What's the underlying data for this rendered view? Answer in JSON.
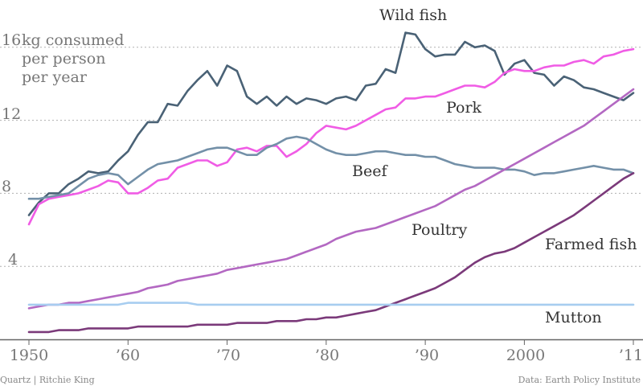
{
  "chart_data": {
    "type": "line",
    "ylabel": [
      "kg consumed",
      "per person",
      "per year"
    ],
    "ylim": [
      0,
      17.5
    ],
    "xlim": [
      1950,
      2011
    ],
    "x_ticks": [
      {
        "value": 1950,
        "label": "1950"
      },
      {
        "value": 1960,
        "label": "’60"
      },
      {
        "value": 1970,
        "label": "’70"
      },
      {
        "value": 1980,
        "label": "’80"
      },
      {
        "value": 1990,
        "label": "’90"
      },
      {
        "value": 2000,
        "label": "2000"
      },
      {
        "value": 2011,
        "label": "’11"
      }
    ],
    "y_ticks": [
      {
        "value": 4,
        "label": "4"
      },
      {
        "value": 8,
        "label": "8"
      },
      {
        "value": 12,
        "label": "12"
      },
      {
        "value": 16,
        "label": "16"
      }
    ],
    "x_start": 1950,
    "series": [
      {
        "name": "Wild fish",
        "color": "#4a6276",
        "values": [
          6.8,
          7.5,
          8.0,
          8.0,
          8.5,
          8.8,
          9.2,
          9.1,
          9.2,
          9.8,
          10.3,
          11.2,
          11.9,
          11.9,
          12.9,
          12.8,
          13.6,
          14.2,
          14.7,
          13.9,
          15.0,
          14.7,
          13.3,
          12.9,
          13.3,
          12.8,
          13.3,
          12.9,
          13.2,
          13.1,
          12.9,
          13.2,
          13.3,
          13.1,
          13.9,
          14.0,
          14.8,
          14.6,
          16.8,
          16.7,
          15.9,
          15.5,
          15.6,
          15.6,
          16.3,
          16.0,
          16.1,
          15.8,
          14.5,
          15.1,
          15.3,
          14.6,
          14.5,
          13.9,
          14.4,
          14.2,
          13.8,
          13.7,
          13.5,
          13.3,
          13.1,
          13.5
        ]
      },
      {
        "name": "Pork",
        "color": "#f05ce5",
        "values": [
          6.3,
          7.4,
          7.7,
          7.8,
          7.9,
          8.0,
          8.2,
          8.4,
          8.7,
          8.6,
          8.0,
          8.0,
          8.3,
          8.7,
          8.8,
          9.4,
          9.6,
          9.8,
          9.8,
          9.5,
          9.7,
          10.4,
          10.5,
          10.3,
          10.6,
          10.6,
          10.0,
          10.3,
          10.7,
          11.3,
          11.7,
          11.6,
          11.5,
          11.7,
          12.0,
          12.3,
          12.6,
          12.7,
          13.2,
          13.2,
          13.3,
          13.3,
          13.5,
          13.7,
          13.9,
          13.9,
          13.8,
          14.1,
          14.6,
          14.8,
          14.7,
          14.7,
          14.9,
          15.0,
          15.0,
          15.2,
          15.3,
          15.1,
          15.5,
          15.6,
          15.8,
          15.9
        ]
      },
      {
        "name": "Beef",
        "color": "#7390a8",
        "values": [
          7.7,
          7.7,
          7.8,
          7.9,
          8.0,
          8.4,
          8.8,
          9.0,
          9.1,
          9.0,
          8.5,
          8.9,
          9.3,
          9.6,
          9.7,
          9.8,
          10.0,
          10.2,
          10.4,
          10.5,
          10.5,
          10.3,
          10.1,
          10.1,
          10.5,
          10.7,
          11.0,
          11.1,
          11.0,
          10.7,
          10.4,
          10.2,
          10.1,
          10.1,
          10.2,
          10.3,
          10.3,
          10.2,
          10.1,
          10.1,
          10.0,
          10.0,
          9.8,
          9.6,
          9.5,
          9.4,
          9.4,
          9.4,
          9.3,
          9.3,
          9.2,
          9.0,
          9.1,
          9.1,
          9.2,
          9.3,
          9.4,
          9.5,
          9.4,
          9.3,
          9.3,
          9.1
        ]
      },
      {
        "name": "Poultry",
        "color": "#b368c2",
        "values": [
          1.7,
          1.8,
          1.9,
          1.9,
          2.0,
          2.0,
          2.1,
          2.2,
          2.3,
          2.4,
          2.5,
          2.6,
          2.8,
          2.9,
          3.0,
          3.2,
          3.3,
          3.4,
          3.5,
          3.6,
          3.8,
          3.9,
          4.0,
          4.1,
          4.2,
          4.3,
          4.4,
          4.6,
          4.8,
          5.0,
          5.2,
          5.5,
          5.7,
          5.9,
          6.0,
          6.1,
          6.3,
          6.5,
          6.7,
          6.9,
          7.1,
          7.3,
          7.6,
          7.9,
          8.2,
          8.4,
          8.7,
          9.0,
          9.3,
          9.6,
          9.9,
          10.2,
          10.5,
          10.8,
          11.1,
          11.4,
          11.7,
          12.1,
          12.5,
          12.9,
          13.3,
          13.7
        ]
      },
      {
        "name": "Farmed fish",
        "color": "#7b3a7a",
        "values": [
          0.4,
          0.4,
          0.4,
          0.5,
          0.5,
          0.5,
          0.6,
          0.6,
          0.6,
          0.6,
          0.6,
          0.7,
          0.7,
          0.7,
          0.7,
          0.7,
          0.7,
          0.8,
          0.8,
          0.8,
          0.8,
          0.9,
          0.9,
          0.9,
          0.9,
          1.0,
          1.0,
          1.0,
          1.1,
          1.1,
          1.2,
          1.2,
          1.3,
          1.4,
          1.5,
          1.6,
          1.8,
          2.0,
          2.2,
          2.4,
          2.6,
          2.8,
          3.1,
          3.4,
          3.8,
          4.2,
          4.5,
          4.7,
          4.8,
          5.0,
          5.3,
          5.6,
          5.9,
          6.2,
          6.5,
          6.8,
          7.2,
          7.6,
          8.0,
          8.4,
          8.8,
          9.1
        ]
      },
      {
        "name": "Mutton",
        "color": "#a7cdf0",
        "values": [
          1.9,
          1.9,
          1.9,
          1.9,
          1.9,
          1.9,
          1.9,
          1.9,
          1.9,
          1.9,
          2.0,
          2.0,
          2.0,
          2.0,
          2.0,
          2.0,
          2.0,
          1.9,
          1.9,
          1.9,
          1.9,
          1.9,
          1.9,
          1.9,
          1.9,
          1.9,
          1.9,
          1.9,
          1.9,
          1.9,
          1.9,
          1.9,
          1.9,
          1.9,
          1.9,
          1.9,
          1.9,
          1.9,
          1.9,
          1.9,
          1.9,
          1.9,
          1.9,
          1.9,
          1.9,
          1.9,
          1.9,
          1.9,
          1.9,
          1.9,
          1.9,
          1.9,
          1.9,
          1.9,
          1.9,
          1.9,
          1.9,
          1.9,
          1.9,
          1.9,
          1.9,
          1.9
        ]
      }
    ],
    "series_labels": {
      "Wild fish": "Wild fish",
      "Pork": "Pork",
      "Beef": "Beef",
      "Poultry": "Poultry",
      "Farmed fish": "Farmed fish",
      "Mutton": "Mutton"
    },
    "credit_left": "Quartz | Ritchie King",
    "credit_right": "Data: Earth Policy Institute"
  }
}
